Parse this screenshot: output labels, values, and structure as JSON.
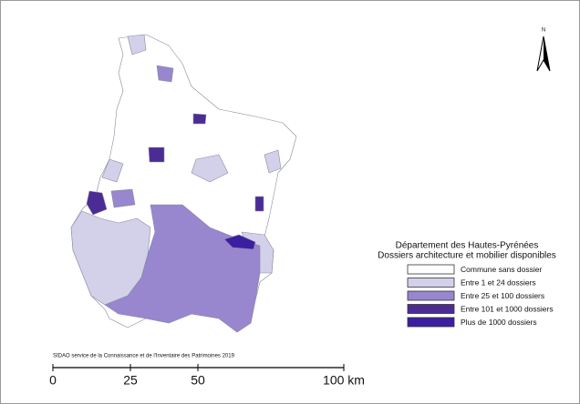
{
  "north_arrow": "N",
  "legend": {
    "title": [
      "Département des Hautes-Pyrénées",
      "Dossiers architecture et mobilier disponibles"
    ],
    "items": [
      {
        "label": "Commune sans dossier",
        "color": "#ffffff"
      },
      {
        "label": "Entre 1 et 24 dossiers",
        "color": "#d3d1ea"
      },
      {
        "label": "Entre 25 et 100 dossiers",
        "color": "#9886cf"
      },
      {
        "label": "Entre 101 et 1000 dossiers",
        "color": "#4b2c95"
      },
      {
        "label": "Plus de 1000 dossiers",
        "color": "#3b1fa0"
      }
    ]
  },
  "credit": "SIDAO service de la Connaissance et de l'Inventaire des Patrimoines 2019",
  "scale_bar": {
    "labels": [
      "0",
      "25",
      "50",
      "100 km"
    ]
  }
}
